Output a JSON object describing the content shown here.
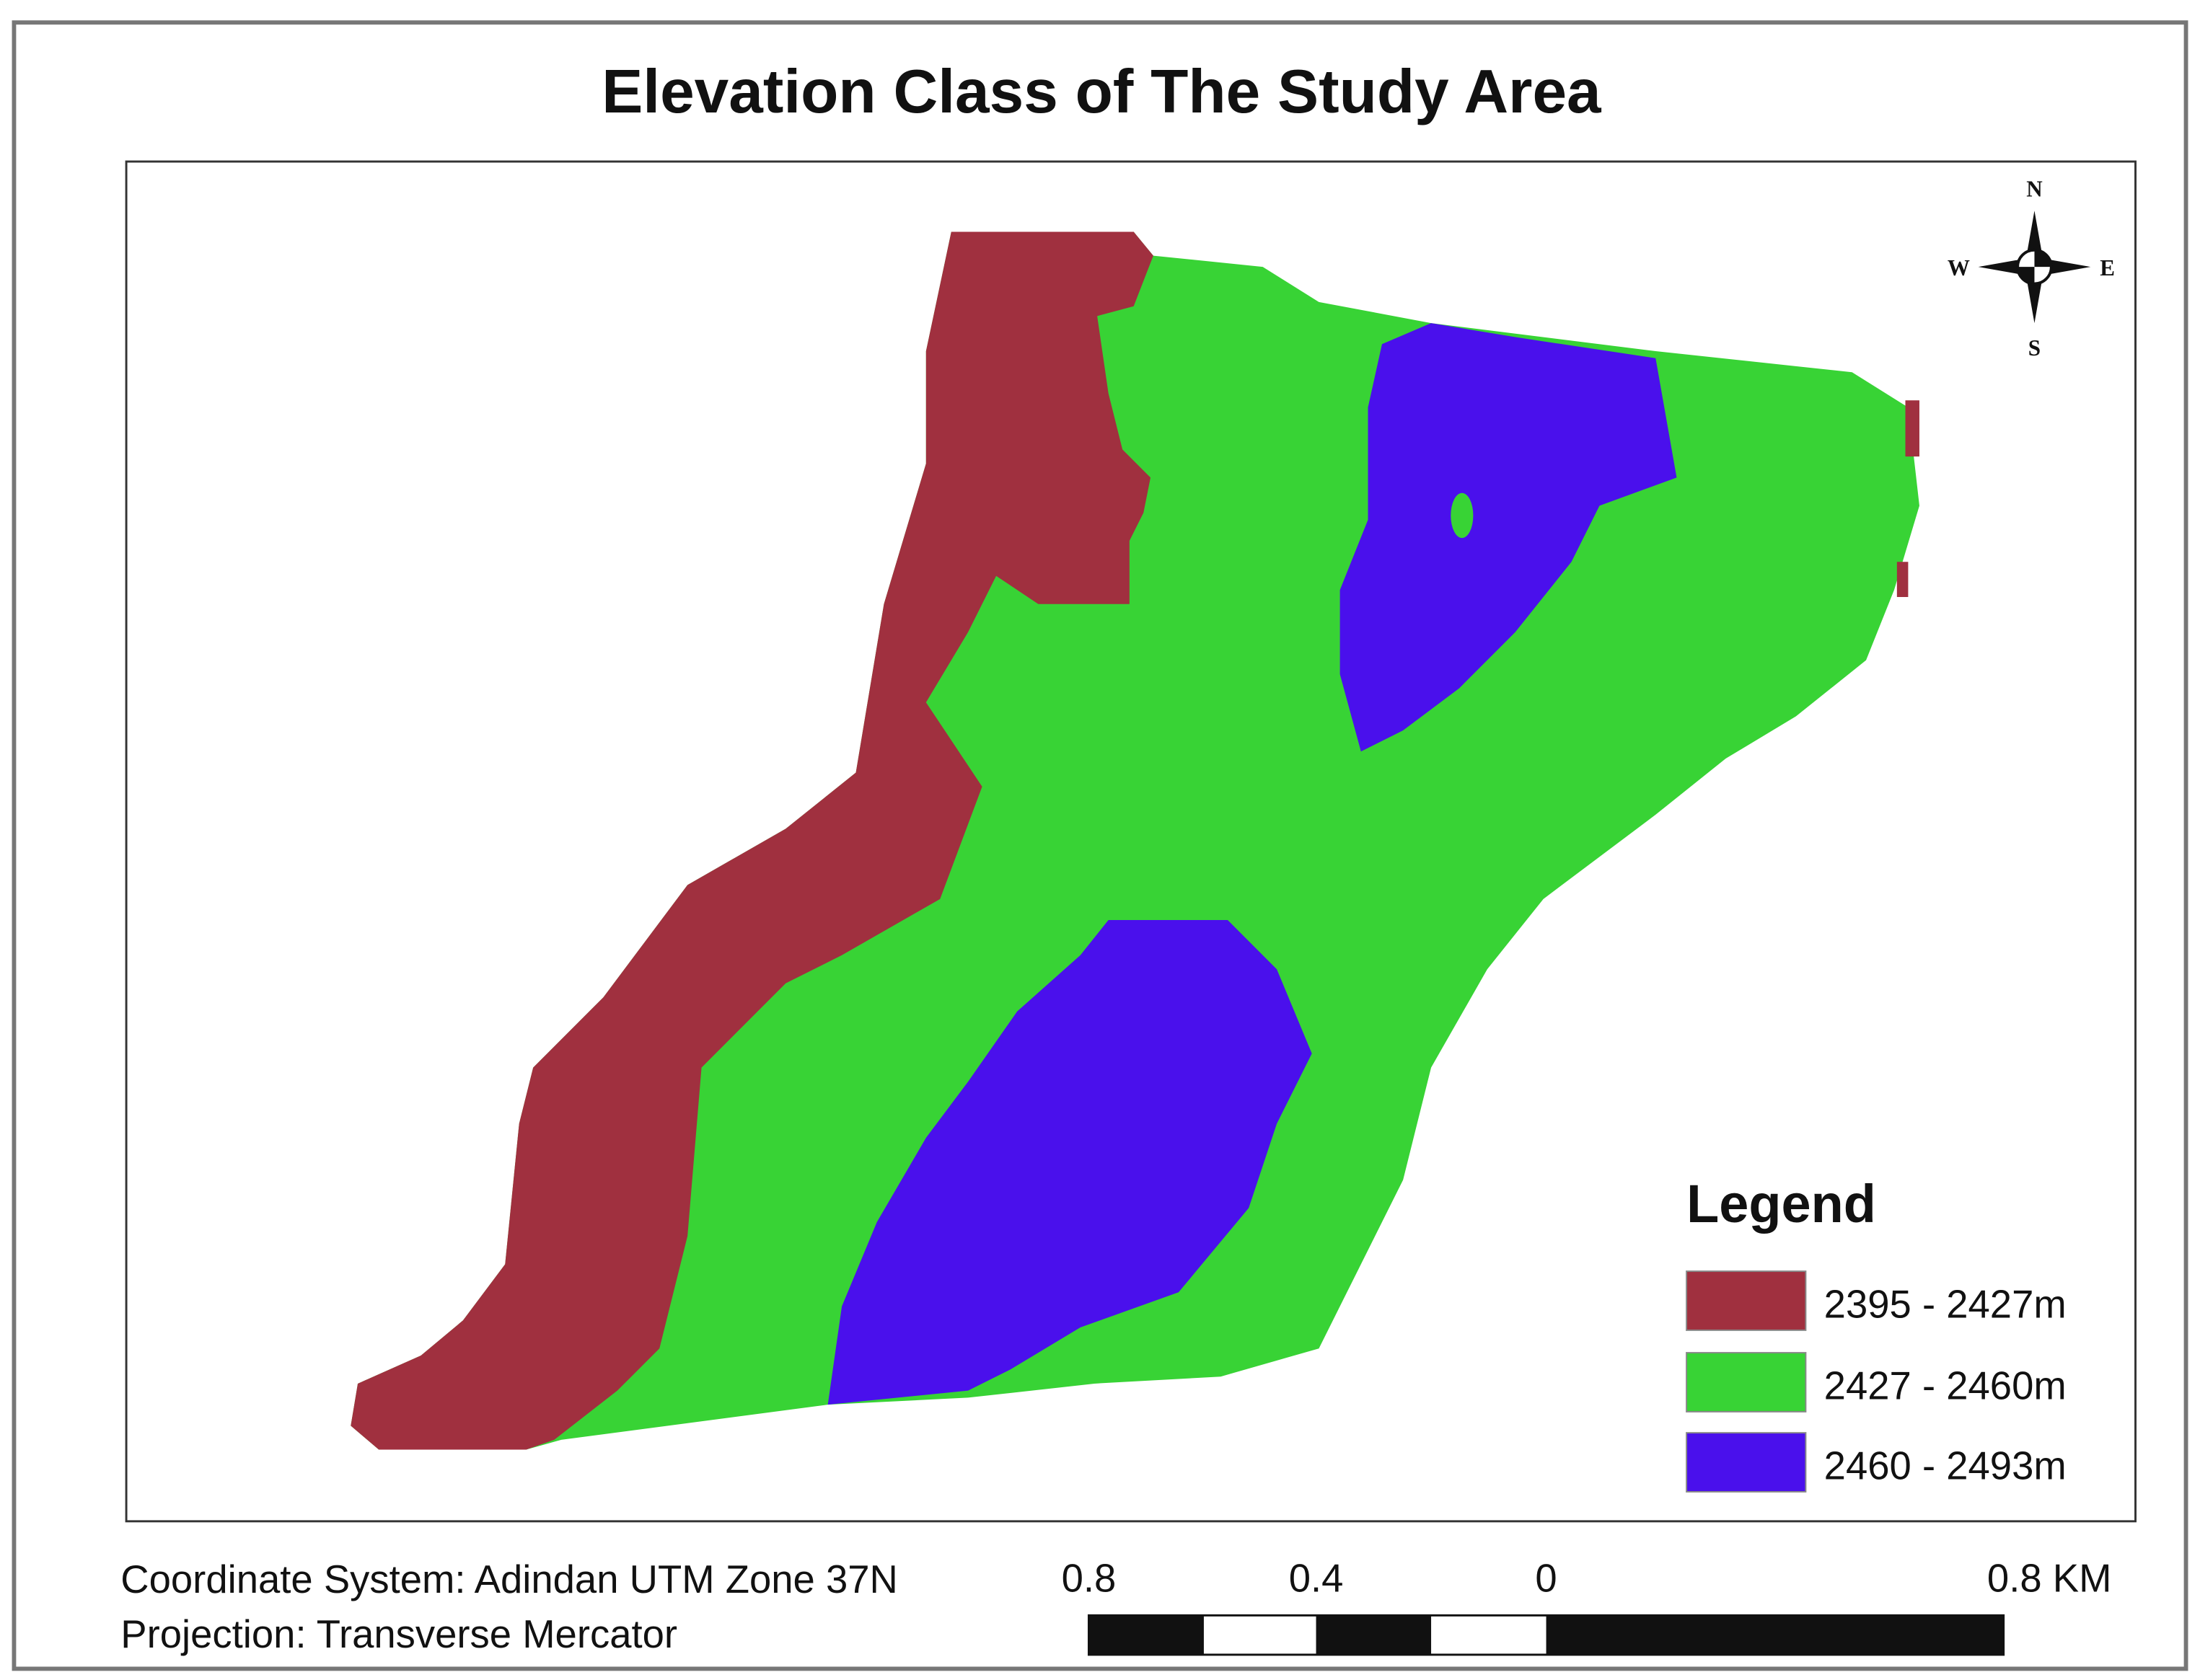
{
  "title": "Elevation Class of The Study Area",
  "legend": {
    "title": "Legend",
    "items": [
      {
        "label": "2395 - 2427m",
        "color": "#a0303f"
      },
      {
        "label": "2427 - 2460m",
        "color": "#38d335"
      },
      {
        "label": "2460 - 2493m",
        "color": "#4a10ec"
      }
    ]
  },
  "compass": {
    "n": "N",
    "s": "S",
    "e": "E",
    "w": "W"
  },
  "footer": {
    "coordinate_system": "Coordinate System: Adindan UTM Zone 37N",
    "projection": "Projection: Transverse Mercator"
  },
  "scale_bar": {
    "labels": [
      "0.8",
      "0.4",
      "0",
      "0.8 KM"
    ]
  }
}
